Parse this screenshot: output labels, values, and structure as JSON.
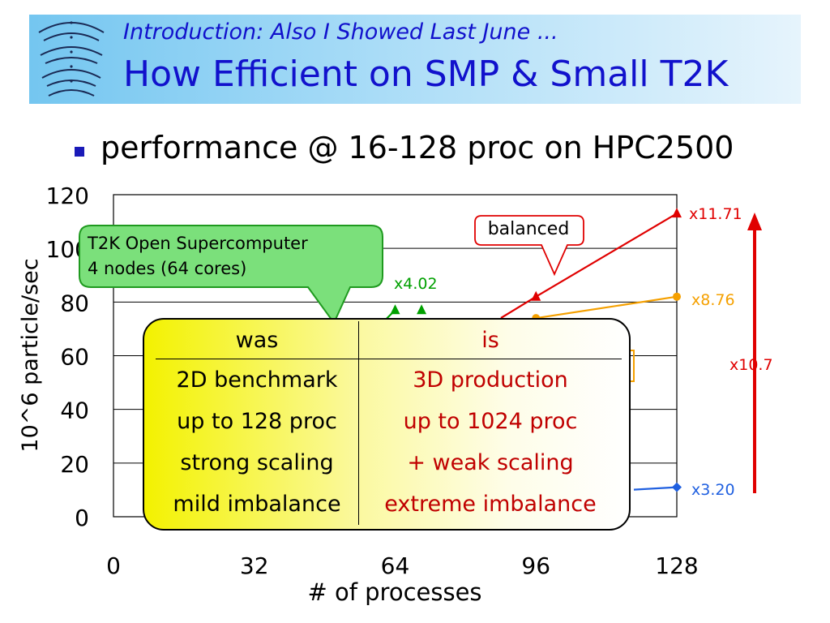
{
  "header": {
    "subtitle": "Introduction: Also I Showed Last June ...",
    "title": "How Efficient on SMP & Small T2K"
  },
  "bullet": "performance @ 16-128 proc on HPC2500",
  "callout": {
    "line1": "T2K Open Supercomputer",
    "line2": "4 nodes (64 cores)"
  },
  "balanced_label": "balanced",
  "comparison": {
    "headers": [
      "was",
      "is"
    ],
    "rows": [
      [
        "2D benchmark",
        "3D production"
      ],
      [
        "up to 128 proc",
        "up to 1024 proc"
      ],
      [
        "strong scaling",
        "+ weak scaling"
      ],
      [
        "mild imbalance",
        "extreme imbalance"
      ]
    ]
  },
  "colors": {
    "red": "#e00000",
    "orange": "#f5a000",
    "blue": "#2060e0",
    "green": "#00a000",
    "banner": "#74c6f0",
    "callout_green": "#7be07b"
  },
  "chart_data": {
    "type": "line",
    "xlabel": "# of processes",
    "ylabel": "10^6 particle/sec",
    "xlim": [
      0,
      128
    ],
    "ylim": [
      0,
      120
    ],
    "x_ticks": [
      0,
      32,
      64,
      96,
      128
    ],
    "y_ticks": [
      0,
      20,
      40,
      60,
      80,
      100,
      120
    ],
    "grid": true,
    "series": [
      {
        "color": "#e00000",
        "marker": "triangle",
        "points": [
          [
            96,
            82
          ],
          [
            128,
            113
          ]
        ]
      },
      {
        "color": "#f5a000",
        "marker": "circle",
        "points": [
          [
            96,
            74
          ],
          [
            128,
            82
          ]
        ]
      },
      {
        "color": "#2060e0",
        "marker": "diamond",
        "points": [
          [
            128,
            11
          ]
        ]
      },
      {
        "color": "#00a000",
        "marker": "triangle",
        "points": [
          [
            64,
            77
          ],
          [
            70,
            77
          ]
        ]
      }
    ],
    "annotations": [
      {
        "text": "x11.71",
        "color": "#e00000"
      },
      {
        "text": "x8.76",
        "color": "#f5a000"
      },
      {
        "text": "x10.7",
        "color": "#e00000"
      },
      {
        "text": "x3.20",
        "color": "#2060e0"
      },
      {
        "text": "x4.02",
        "color": "#00a000"
      }
    ]
  }
}
